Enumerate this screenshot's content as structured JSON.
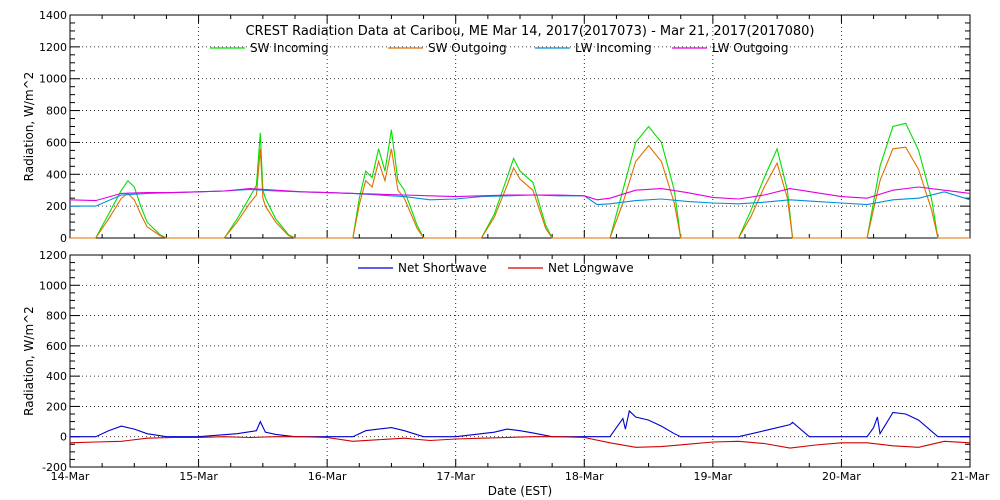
{
  "title": "CREST Radiation Data at Caribou, ME   Mar 14, 2017(2017073) - Mar 21, 2017(2017080)",
  "xlabel": "Date (EST)",
  "colors": {
    "sw_in": "#00e000",
    "sw_out": "#e07000",
    "lw_in": "#0090d8",
    "lw_out": "#e000e0",
    "net_sw": "#0000d0",
    "net_lw": "#d00000"
  },
  "chart_data": [
    {
      "type": "line",
      "ylabel": "Radiation, W/m^2",
      "xlim": [
        "14-Mar",
        "21-Mar"
      ],
      "x_ticks": [
        "14-Mar",
        "15-Mar",
        "16-Mar",
        "17-Mar",
        "18-Mar",
        "19-Mar",
        "20-Mar",
        "21-Mar"
      ],
      "ylim": [
        0,
        1400
      ],
      "y_ticks": [
        0,
        200,
        400,
        600,
        800,
        1000,
        1200,
        1400
      ],
      "grid": true,
      "legend": "top-center",
      "series": [
        {
          "name": "SW Incoming",
          "color_key": "sw_in",
          "x": [
            0,
            0.2,
            0.3,
            0.4,
            0.45,
            0.5,
            0.55,
            0.6,
            0.7,
            0.75,
            1.2,
            1.3,
            1.4,
            1.45,
            1.48,
            1.5,
            1.52,
            1.6,
            1.7,
            1.75,
            2.2,
            2.25,
            2.3,
            2.35,
            2.4,
            2.45,
            2.5,
            2.55,
            2.6,
            2.7,
            2.75,
            3.2,
            3.3,
            3.4,
            3.45,
            3.5,
            3.6,
            3.7,
            3.75,
            4.2,
            4.3,
            4.4,
            4.5,
            4.6,
            4.7,
            4.75,
            5.2,
            5.3,
            5.4,
            5.5,
            5.58,
            5.62,
            5.75,
            6.2,
            6.3,
            6.4,
            6.5,
            6.6,
            6.7,
            6.75,
            7
          ],
          "y": [
            0,
            0,
            150,
            300,
            360,
            320,
            200,
            100,
            20,
            0,
            0,
            120,
            260,
            330,
            660,
            300,
            250,
            120,
            20,
            0,
            0,
            250,
            420,
            380,
            560,
            420,
            680,
            360,
            300,
            80,
            0,
            0,
            150,
            380,
            500,
            420,
            350,
            80,
            0,
            0,
            300,
            600,
            700,
            600,
            300,
            0,
            0,
            180,
            380,
            560,
            300,
            0,
            0,
            0,
            450,
            700,
            720,
            550,
            250,
            0,
            0
          ]
        },
        {
          "name": "SW Outgoing",
          "color_key": "sw_out",
          "x": [
            0,
            0.2,
            0.3,
            0.4,
            0.45,
            0.5,
            0.55,
            0.6,
            0.7,
            0.75,
            1.2,
            1.3,
            1.4,
            1.45,
            1.48,
            1.5,
            1.52,
            1.6,
            1.7,
            1.75,
            2.2,
            2.25,
            2.3,
            2.35,
            2.4,
            2.45,
            2.5,
            2.55,
            2.6,
            2.7,
            2.75,
            3.2,
            3.3,
            3.4,
            3.45,
            3.5,
            3.6,
            3.7,
            3.75,
            4.2,
            4.3,
            4.4,
            4.5,
            4.6,
            4.7,
            4.75,
            5.2,
            5.3,
            5.4,
            5.5,
            5.58,
            5.62,
            5.75,
            6.2,
            6.3,
            6.4,
            6.5,
            6.6,
            6.7,
            6.75,
            7
          ],
          "y": [
            0,
            0,
            120,
            250,
            280,
            240,
            150,
            70,
            15,
            0,
            0,
            100,
            220,
            270,
            560,
            250,
            200,
            100,
            15,
            0,
            0,
            210,
            360,
            320,
            480,
            360,
            560,
            300,
            250,
            60,
            0,
            0,
            130,
            330,
            440,
            370,
            300,
            60,
            0,
            0,
            220,
            480,
            580,
            480,
            220,
            0,
            0,
            140,
            320,
            470,
            250,
            0,
            0,
            0,
            360,
            560,
            570,
            430,
            180,
            0,
            0
          ]
        },
        {
          "name": "LW Incoming",
          "color_key": "lw_in",
          "x": [
            0,
            0.2,
            0.4,
            0.6,
            0.8,
            1,
            1.2,
            1.4,
            1.6,
            1.8,
            2,
            2.2,
            2.4,
            2.6,
            2.8,
            3,
            3.2,
            3.4,
            3.6,
            3.8,
            4,
            4.1,
            4.2,
            4.4,
            4.6,
            4.8,
            5,
            5.2,
            5.4,
            5.6,
            5.8,
            6,
            6.2,
            6.4,
            6.6,
            6.8,
            7
          ],
          "y": [
            200,
            200,
            270,
            280,
            285,
            290,
            295,
            305,
            295,
            290,
            285,
            280,
            270,
            260,
            240,
            245,
            260,
            265,
            270,
            265,
            265,
            210,
            215,
            235,
            245,
            230,
            220,
            215,
            225,
            240,
            230,
            220,
            210,
            240,
            250,
            290,
            240
          ]
        },
        {
          "name": "LW Outgoing",
          "color_key": "lw_out",
          "x": [
            0,
            0.2,
            0.4,
            0.6,
            0.8,
            1,
            1.2,
            1.4,
            1.6,
            1.8,
            2,
            2.2,
            2.4,
            2.6,
            2.8,
            3,
            3.2,
            3.4,
            3.6,
            3.8,
            4,
            4.1,
            4.2,
            4.4,
            4.6,
            4.8,
            5,
            5.2,
            5.4,
            5.6,
            5.8,
            6,
            6.2,
            6.4,
            6.6,
            6.8,
            7
          ],
          "y": [
            240,
            235,
            280,
            285,
            285,
            290,
            295,
            310,
            300,
            290,
            285,
            280,
            275,
            270,
            265,
            260,
            265,
            270,
            270,
            270,
            265,
            240,
            250,
            300,
            310,
            285,
            255,
            245,
            270,
            310,
            285,
            260,
            250,
            300,
            320,
            300,
            280
          ]
        }
      ]
    },
    {
      "type": "line",
      "ylabel": "Radiation, W/m^2",
      "xlim": [
        "14-Mar",
        "21-Mar"
      ],
      "x_ticks": [
        "14-Mar",
        "15-Mar",
        "16-Mar",
        "17-Mar",
        "18-Mar",
        "19-Mar",
        "20-Mar",
        "21-Mar"
      ],
      "ylim": [
        -200,
        1200
      ],
      "y_ticks": [
        -200,
        0,
        200,
        400,
        600,
        800,
        1000,
        1200
      ],
      "grid": true,
      "legend": "top-center",
      "series": [
        {
          "name": "Net Shortwave",
          "color_key": "net_sw",
          "x": [
            0,
            0.2,
            0.3,
            0.4,
            0.5,
            0.6,
            0.75,
            1,
            1.3,
            1.45,
            1.48,
            1.52,
            1.6,
            1.75,
            2.2,
            2.3,
            2.4,
            2.5,
            2.6,
            2.75,
            3,
            3.3,
            3.4,
            3.5,
            3.6,
            3.75,
            4,
            4.2,
            4.25,
            4.3,
            4.32,
            4.35,
            4.4,
            4.5,
            4.6,
            4.7,
            4.75,
            5,
            5.2,
            5.4,
            5.6,
            5.62,
            5.75,
            6,
            6.2,
            6.25,
            6.28,
            6.3,
            6.4,
            6.5,
            6.6,
            6.75,
            7
          ],
          "y": [
            0,
            0,
            40,
            70,
            50,
            20,
            0,
            0,
            20,
            40,
            100,
            30,
            15,
            0,
            0,
            40,
            50,
            60,
            40,
            0,
            0,
            30,
            50,
            40,
            25,
            0,
            0,
            0,
            60,
            120,
            50,
            170,
            130,
            110,
            70,
            20,
            0,
            0,
            0,
            40,
            80,
            95,
            0,
            0,
            0,
            60,
            130,
            20,
            160,
            150,
            110,
            0,
            0
          ]
        },
        {
          "name": "Net Longwave",
          "color_key": "net_lw",
          "x": [
            0,
            0.2,
            0.4,
            0.6,
            0.8,
            1,
            1.2,
            1.4,
            1.6,
            1.8,
            2,
            2.2,
            2.4,
            2.6,
            2.8,
            3,
            3.2,
            3.4,
            3.6,
            3.8,
            4,
            4.2,
            4.4,
            4.6,
            4.8,
            5,
            5.2,
            5.4,
            5.6,
            5.8,
            6,
            6.2,
            6.4,
            6.6,
            6.8,
            7
          ],
          "y": [
            -40,
            -35,
            -30,
            -10,
            -5,
            -5,
            0,
            -5,
            0,
            0,
            -5,
            -30,
            -20,
            -10,
            -25,
            -15,
            -10,
            -5,
            0,
            0,
            -5,
            -40,
            -70,
            -65,
            -50,
            -35,
            -30,
            -45,
            -75,
            -55,
            -40,
            -40,
            -60,
            -70,
            -30,
            -40
          ]
        }
      ]
    }
  ]
}
